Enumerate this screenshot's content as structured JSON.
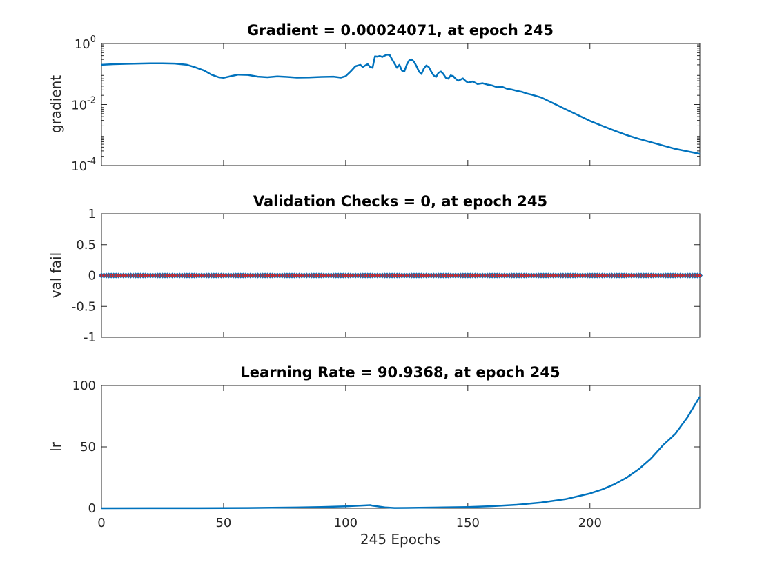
{
  "chart_data": [
    {
      "type": "line",
      "title": "Gradient = 0.00024071, at epoch 245",
      "ylabel": "gradient",
      "xlabel": "",
      "yscale": "log",
      "xlim": [
        0,
        245
      ],
      "ylim": [
        0.0001,
        1
      ],
      "grid": false,
      "yticks": [
        {
          "base": "10",
          "exp": "-4"
        },
        {
          "base": "10",
          "exp": "-2"
        },
        {
          "base": "10",
          "exp": "0"
        }
      ],
      "color": "#0072BD",
      "series": [
        {
          "x": [
            0,
            5,
            10,
            15,
            20,
            25,
            30,
            35,
            38,
            42,
            45,
            48,
            50,
            53,
            56,
            60,
            64,
            68,
            72,
            76,
            80,
            85,
            90,
            95,
            98,
            100,
            102,
            104,
            106,
            107,
            108,
            109,
            110,
            111,
            112,
            113,
            114,
            115,
            116,
            117,
            118,
            119,
            120,
            121,
            122,
            123,
            124,
            125,
            126,
            127,
            128,
            129,
            130,
            131,
            132,
            133,
            134,
            135,
            136,
            137,
            138,
            139,
            140,
            141,
            142,
            143,
            144,
            145,
            146,
            147,
            148,
            149,
            150,
            152,
            154,
            156,
            158,
            160,
            162,
            164,
            166,
            168,
            170,
            172,
            174,
            176,
            178,
            180,
            185,
            190,
            195,
            200,
            205,
            210,
            215,
            220,
            225,
            230,
            235,
            240,
            245
          ],
          "y": [
            0.2,
            0.21,
            0.215,
            0.22,
            0.225,
            0.225,
            0.22,
            0.2,
            0.17,
            0.13,
            0.095,
            0.078,
            0.075,
            0.085,
            0.095,
            0.093,
            0.082,
            0.078,
            0.083,
            0.08,
            0.076,
            0.077,
            0.08,
            0.082,
            0.076,
            0.085,
            0.12,
            0.18,
            0.2,
            0.17,
            0.19,
            0.21,
            0.17,
            0.16,
            0.38,
            0.37,
            0.39,
            0.36,
            0.4,
            0.43,
            0.42,
            0.3,
            0.22,
            0.16,
            0.2,
            0.13,
            0.12,
            0.2,
            0.28,
            0.3,
            0.25,
            0.18,
            0.12,
            0.1,
            0.15,
            0.19,
            0.17,
            0.12,
            0.09,
            0.08,
            0.11,
            0.12,
            0.1,
            0.075,
            0.07,
            0.09,
            0.085,
            0.07,
            0.06,
            0.065,
            0.072,
            0.06,
            0.052,
            0.057,
            0.047,
            0.05,
            0.045,
            0.042,
            0.037,
            0.038,
            0.033,
            0.031,
            0.028,
            0.026,
            0.023,
            0.021,
            0.019,
            0.017,
            0.011,
            0.007,
            0.0045,
            0.0029,
            0.002,
            0.0014,
            0.001,
            0.00075,
            0.00058,
            0.00045,
            0.00035,
            0.00029,
            0.00024071
          ]
        }
      ]
    },
    {
      "type": "line",
      "title": "Validation Checks = 0, at epoch 245",
      "ylabel": "val fail",
      "xlabel": "",
      "xlim": [
        0,
        245
      ],
      "ylim": [
        -1,
        1
      ],
      "grid": false,
      "yticks": [
        "1",
        "0.5",
        "0",
        "-0.5",
        "-1"
      ],
      "color": "#0072BD",
      "marker_color": "#D62728",
      "series": [
        {
          "x_start": 0,
          "x_end": 245,
          "value": 0
        }
      ]
    },
    {
      "type": "line",
      "title": "Learning Rate = 90.9368, at epoch 245",
      "ylabel": "lr",
      "xlabel": "245 Epochs",
      "xlim": [
        0,
        245
      ],
      "ylim": [
        0,
        100
      ],
      "grid": false,
      "xticks": [
        "0",
        "50",
        "100",
        "150",
        "200"
      ],
      "yticks": [
        "0",
        "50",
        "100"
      ],
      "color": "#0072BD",
      "series": [
        {
          "x": [
            0,
            20,
            40,
            60,
            80,
            90,
            100,
            105,
            108,
            110,
            111,
            113,
            116,
            120,
            125,
            130,
            140,
            150,
            160,
            170,
            180,
            190,
            200,
            205,
            210,
            215,
            220,
            225,
            230,
            235,
            240,
            245
          ],
          "y": [
            0.01,
            0.03,
            0.08,
            0.2,
            0.6,
            1.0,
            1.6,
            2.0,
            2.3,
            2.5,
            2.1,
            1.5,
            0.7,
            0.2,
            0.3,
            0.4,
            0.65,
            1.0,
            1.7,
            2.8,
            4.6,
            7.4,
            12,
            15.3,
            19.5,
            24.9,
            31.8,
            40.5,
            51.5,
            60.7,
            74.3,
            90.9368
          ]
        }
      ]
    }
  ]
}
